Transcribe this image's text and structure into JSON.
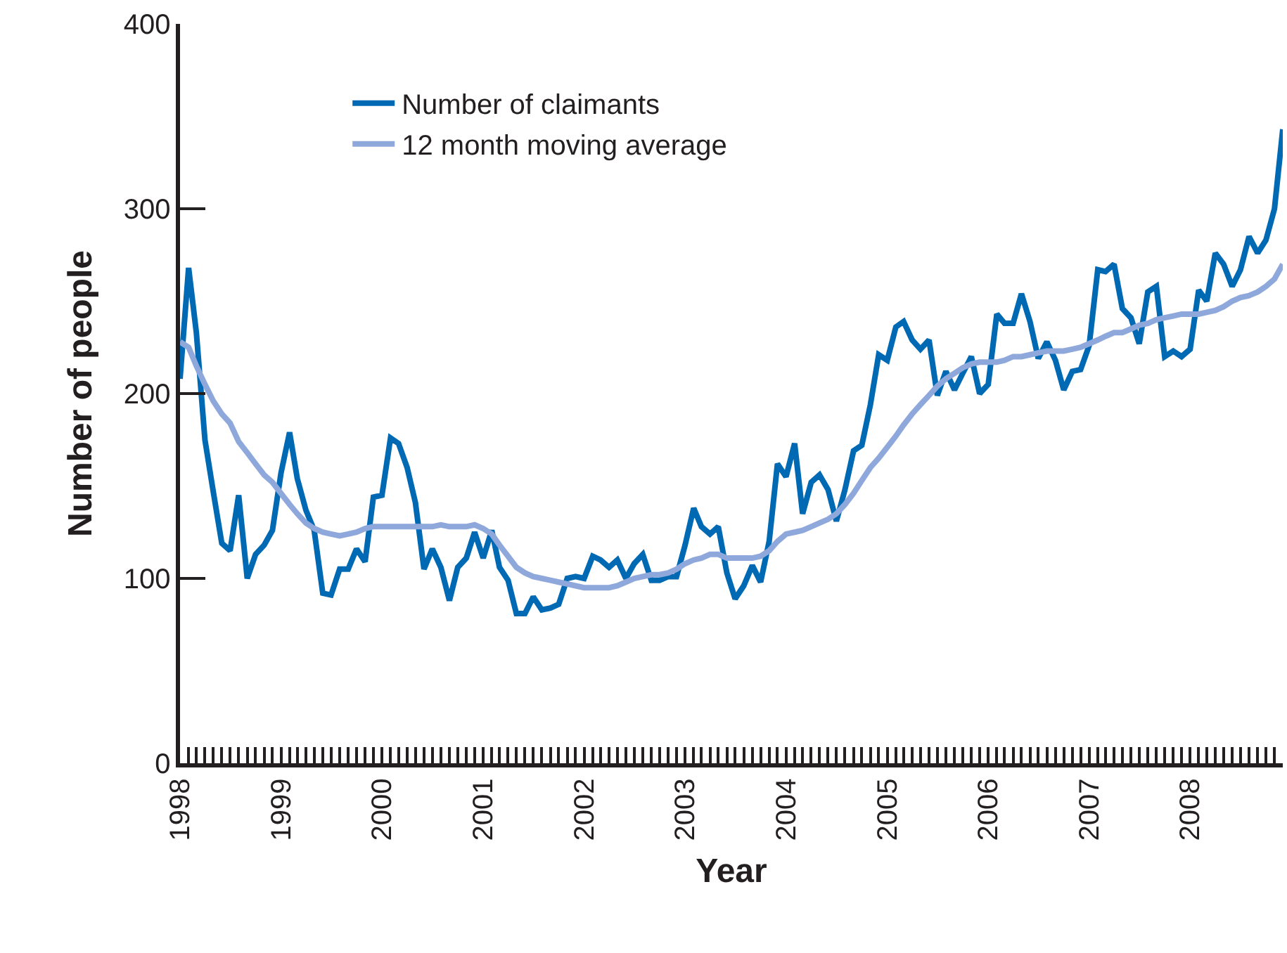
{
  "chart_data": {
    "type": "line",
    "xlabel": "Year",
    "ylabel": "Number of people",
    "x": [
      "1998-01",
      "1998-02",
      "1998-03",
      "1998-04",
      "1998-05",
      "1998-06",
      "1998-07",
      "1998-08",
      "1998-09",
      "1998-10",
      "1998-11",
      "1998-12",
      "1999-01",
      "1999-02",
      "1999-03",
      "1999-04",
      "1999-05",
      "1999-06",
      "1999-07",
      "1999-08",
      "1999-09",
      "1999-10",
      "1999-11",
      "1999-12",
      "2000-01",
      "2000-02",
      "2000-03",
      "2000-04",
      "2000-05",
      "2000-06",
      "2000-07",
      "2000-08",
      "2000-09",
      "2000-10",
      "2000-11",
      "2000-12",
      "2001-01",
      "2001-02",
      "2001-03",
      "2001-04",
      "2001-05",
      "2001-06",
      "2001-07",
      "2001-08",
      "2001-09",
      "2001-10",
      "2001-11",
      "2001-12",
      "2002-01",
      "2002-02",
      "2002-03",
      "2002-04",
      "2002-05",
      "2002-06",
      "2002-07",
      "2002-08",
      "2002-09",
      "2002-10",
      "2002-11",
      "2002-12",
      "2003-01",
      "2003-02",
      "2003-03",
      "2003-04",
      "2003-05",
      "2003-06",
      "2003-07",
      "2003-08",
      "2003-09",
      "2003-10",
      "2003-11",
      "2003-12",
      "2004-01",
      "2004-02",
      "2004-03",
      "2004-04",
      "2004-05",
      "2004-06",
      "2004-07",
      "2004-08",
      "2004-09",
      "2004-10",
      "2004-11",
      "2004-12",
      "2005-01",
      "2005-02",
      "2005-03",
      "2005-04",
      "2005-05",
      "2005-06",
      "2005-07",
      "2005-08",
      "2005-09",
      "2005-10",
      "2005-11",
      "2005-12",
      "2006-01",
      "2006-02",
      "2006-03",
      "2006-04",
      "2006-05",
      "2006-06",
      "2006-07",
      "2006-08",
      "2006-09",
      "2006-10",
      "2006-11",
      "2006-12",
      "2007-01",
      "2007-02",
      "2007-03",
      "2007-04",
      "2007-05",
      "2007-06",
      "2007-07",
      "2007-08",
      "2007-09",
      "2007-10",
      "2007-11",
      "2007-12",
      "2008-01",
      "2008-02",
      "2008-03",
      "2008-04",
      "2008-05",
      "2008-06",
      "2008-07",
      "2008-08",
      "2008-09",
      "2008-10",
      "2008-11",
      "2008-12"
    ],
    "series": [
      {
        "name": "Number of claimants",
        "color": "#0069b4",
        "values": [
          208,
          268,
          233,
          175,
          147,
          119,
          115,
          145,
          100,
          113,
          118,
          126,
          157,
          179,
          154,
          137,
          126,
          92,
          91,
          105,
          105,
          116,
          109,
          144,
          145,
          176,
          173,
          160,
          141,
          105,
          116,
          106,
          88,
          106,
          111,
          125,
          111,
          126,
          106,
          99,
          81,
          81,
          90,
          83,
          84,
          86,
          100,
          101,
          100,
          112,
          110,
          106,
          110,
          100,
          108,
          113,
          99,
          99,
          101,
          101,
          118,
          138,
          128,
          124,
          128,
          103,
          89,
          96,
          107,
          98,
          120,
          162,
          155,
          173,
          135,
          152,
          156,
          148,
          131,
          148,
          169,
          172,
          194,
          221,
          218,
          236,
          239,
          229,
          224,
          229,
          199,
          212,
          202,
          211,
          220,
          200,
          205,
          243,
          238,
          238,
          254,
          239,
          219,
          228,
          218,
          202,
          212,
          213,
          226,
          267,
          266,
          270,
          246,
          241,
          227,
          255,
          258,
          220,
          223,
          220,
          224,
          256,
          250,
          276,
          270,
          258,
          267,
          285,
          276,
          283,
          300,
          343
        ]
      },
      {
        "name": "12 month moving average",
        "color": "#8fa8dc",
        "values": [
          228,
          225,
          215,
          205,
          196,
          189,
          184,
          174,
          168,
          162,
          156,
          152,
          146,
          140,
          135,
          130,
          127,
          125,
          124,
          123,
          124,
          125,
          127,
          128,
          128,
          128,
          128,
          128,
          128,
          128,
          128,
          129,
          128,
          128,
          128,
          129,
          127,
          124,
          118,
          112,
          106,
          103,
          101,
          100,
          99,
          98,
          97,
          96,
          95,
          95,
          95,
          95,
          96,
          98,
          100,
          101,
          102,
          102,
          103,
          105,
          108,
          110,
          111,
          113,
          113,
          111,
          111,
          111,
          111,
          112,
          115,
          120,
          124,
          125,
          126,
          128,
          130,
          132,
          135,
          140,
          146,
          153,
          160,
          165,
          171,
          177,
          183,
          189,
          194,
          199,
          204,
          208,
          211,
          214,
          216,
          217,
          217,
          217,
          218,
          220,
          220,
          221,
          222,
          223,
          223,
          223,
          224,
          225,
          227,
          229,
          231,
          233,
          233,
          235,
          237,
          238,
          240,
          241,
          242,
          243,
          243,
          243,
          244,
          245,
          247,
          250,
          252,
          253,
          255,
          258,
          262,
          270
        ]
      }
    ],
    "xlim": [
      "1998-01",
      "2008-12"
    ],
    "xticks": [
      {
        "value": "1998",
        "label": "1998"
      },
      {
        "value": "1999",
        "label": "1999"
      },
      {
        "value": "2000",
        "label": "2000"
      },
      {
        "value": "2001",
        "label": "2001"
      },
      {
        "value": "2002",
        "label": "2002"
      },
      {
        "value": "2003",
        "label": "2003"
      },
      {
        "value": "2004",
        "label": "2004"
      },
      {
        "value": "2005",
        "label": "2005"
      },
      {
        "value": "2006",
        "label": "2006"
      },
      {
        "value": "2007",
        "label": "2007"
      },
      {
        "value": "2008",
        "label": "2008"
      }
    ],
    "ylim": [
      0,
      400
    ],
    "yticks": [
      0,
      100,
      200,
      300,
      400
    ],
    "grid": false,
    "legend": "top left",
    "marker": "none",
    "line_style": "solid"
  }
}
